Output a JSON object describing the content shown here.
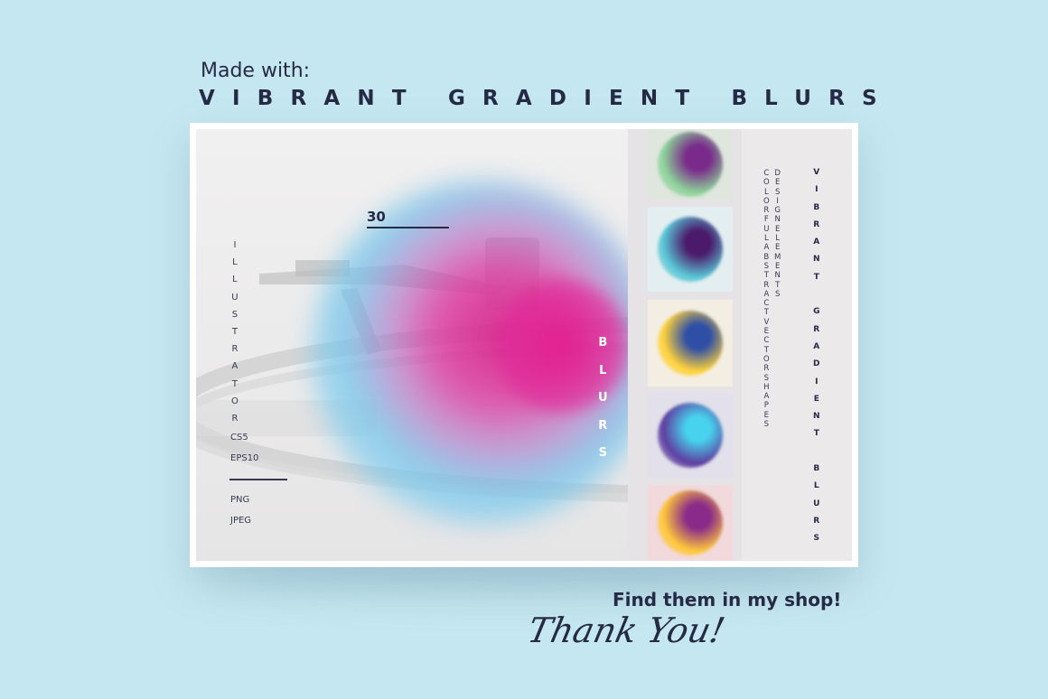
{
  "header": {
    "made_with": "Made with:",
    "title": "VIBRANT GRADIENT BLURS"
  },
  "preview": {
    "count": "30",
    "software": [
      "I",
      "L",
      "L",
      "U",
      "S",
      "T",
      "R",
      "A",
      "T",
      "O",
      "R"
    ],
    "formats_top": [
      "CS5",
      "EPS10"
    ],
    "formats_bottom": [
      "PNG",
      "JPEG"
    ],
    "blurs_vertical": [
      "B",
      "L",
      "U",
      "R",
      "S"
    ],
    "thumbnails": [
      {
        "bg": "#dfe6dd",
        "outer": "#8dd39a",
        "inner": "#7a2a8a"
      },
      {
        "bg": "#e3eef0",
        "outer": "#59c7d6",
        "inner": "#4b1a6a"
      },
      {
        "bg": "#f4eee2",
        "outer": "#ffd23a",
        "inner": "#2f4fa6"
      },
      {
        "bg": "#e2e0ea",
        "outer": "#5d3ea0",
        "inner": "#47d3ee"
      },
      {
        "bg": "#f2d9dc",
        "outer": "#ffc83a",
        "inner": "#8a2a8a"
      }
    ],
    "col_a": [
      "C",
      "O",
      "L",
      "O",
      "R",
      "F",
      "U",
      "L",
      "A",
      "B",
      "S",
      "T",
      "R",
      "A",
      "C",
      "T",
      "V",
      "E",
      "C",
      "T",
      "O",
      "R",
      "S",
      "H",
      "A",
      "P",
      "E",
      "S"
    ],
    "col_b": [
      "D",
      "E",
      "S",
      "I",
      "G",
      "N",
      "E",
      "L",
      "E",
      "M",
      "E",
      "N",
      "T",
      "S"
    ],
    "col_c": [
      "V",
      "I",
      "B",
      "R",
      "A",
      "N",
      "T",
      "",
      "G",
      "R",
      "A",
      "D",
      "I",
      "E",
      "N",
      "T",
      "",
      "B",
      "L",
      "U",
      "R",
      "S"
    ]
  },
  "footer": {
    "shop": "Find them in my shop!",
    "thanks": "Thank You!"
  }
}
